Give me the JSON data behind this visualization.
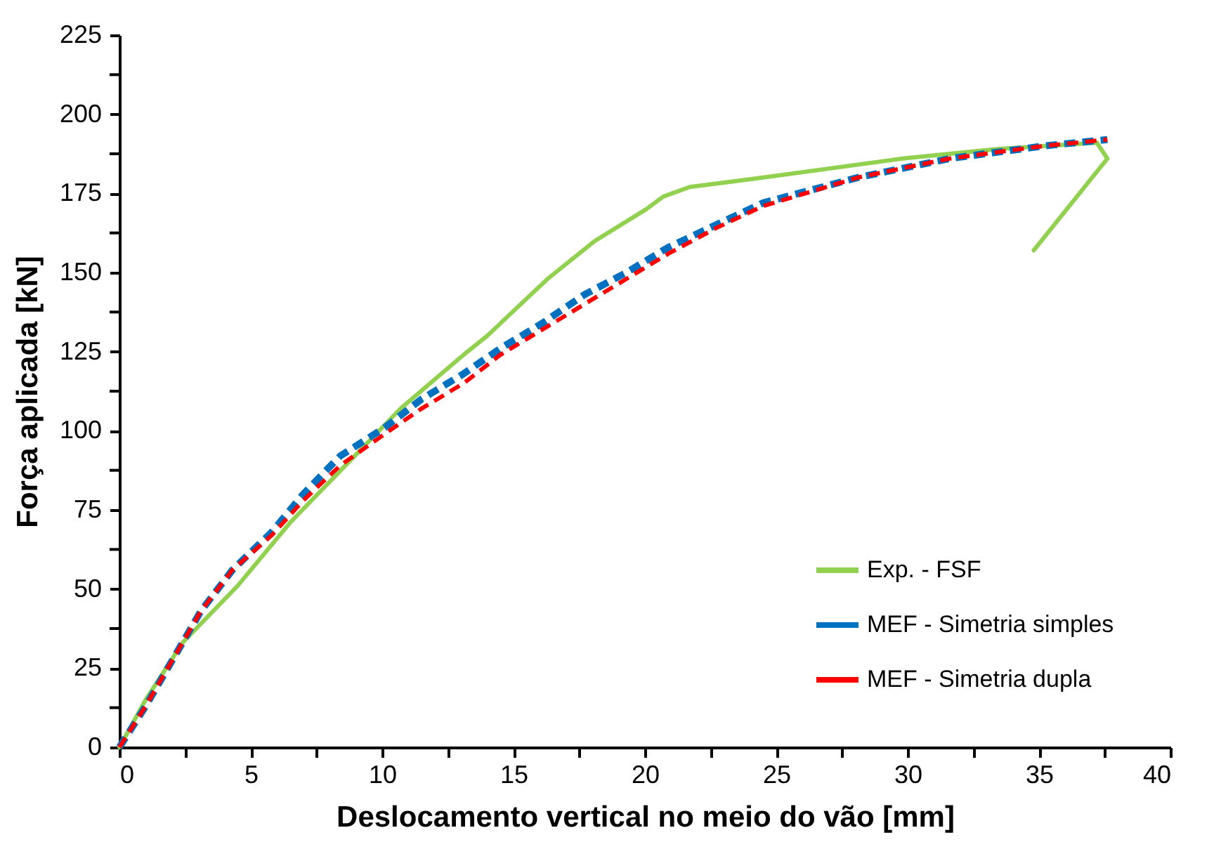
{
  "chart_data": {
    "type": "line",
    "xlabel": "Deslocamento vertical no meio do vão [mm]",
    "ylabel": "Força aplicada [kN]",
    "xlim": [
      0,
      40
    ],
    "ylim": [
      0,
      225
    ],
    "xticks": [
      0,
      {
        "value": 2.5,
        "label": null
      },
      5,
      {
        "value": 7.5,
        "label": null
      },
      10,
      {
        "value": 12.5,
        "label": null
      },
      15,
      {
        "value": 17.5,
        "label": null
      },
      20,
      {
        "value": 22.5,
        "label": null
      },
      25,
      {
        "value": 27.5,
        "label": null
      },
      30,
      {
        "value": 32.5,
        "label": null
      },
      35,
      {
        "value": 37.5,
        "label": null
      },
      40
    ],
    "yticks": [
      0,
      {
        "value": 12.5,
        "label": null
      },
      25,
      {
        "value": 37.5,
        "label": null
      },
      50,
      {
        "value": 62.5,
        "label": null
      },
      75,
      {
        "value": 87.5,
        "label": null
      },
      100,
      {
        "value": 112.5,
        "label": null
      },
      125,
      {
        "value": 137.5,
        "label": null
      },
      150,
      {
        "value": 162.5,
        "label": null
      },
      175,
      {
        "value": 187.5,
        "label": null
      },
      200,
      {
        "value": 212.5,
        "label": null
      },
      225
    ],
    "grid": false,
    "legend": "bottom right",
    "marker": "none",
    "series": [
      {
        "name": "Exp. - FSF",
        "color": "#92d050",
        "line_style": "solid",
        "x": [
          0,
          1,
          2.4,
          4.5,
          6.5,
          8.6,
          10.7,
          13.1,
          14.0,
          16.3,
          18.1,
          20.05,
          20.7,
          21.7,
          24.5,
          29.8,
          33.4,
          37.2,
          37.6,
          34.8
        ],
        "values": [
          0,
          15,
          33,
          51,
          71,
          89,
          107,
          124,
          130,
          148,
          160,
          170,
          174,
          177,
          180,
          186,
          189,
          191,
          186,
          157
        ]
      },
      {
        "name": "MEF - Simetria simples",
        "color": "#0070c0",
        "line_style": "dashed",
        "x": [
          0,
          1,
          2.4,
          3.1,
          4.3,
          5.8,
          7.0,
          8.4,
          10.1,
          11.5,
          13.1,
          14.5,
          16.1,
          17.7,
          19.3,
          20.9,
          22.7,
          24.5,
          28.1,
          31.6,
          35.2,
          37.6
        ],
        "values": [
          0,
          13,
          33,
          43,
          56,
          68,
          80,
          92,
          101,
          110,
          118,
          126,
          134,
          143,
          150,
          158,
          165,
          172,
          180,
          186,
          190,
          192
        ]
      },
      {
        "name": "MEF - Simetria dupla",
        "color": "#ff0000",
        "line_style": "dashed",
        "x": [
          0,
          1,
          2.4,
          3.1,
          4.3,
          5.8,
          7.0,
          8.4,
          10.1,
          11.5,
          13.1,
          14.5,
          16.1,
          17.7,
          19.3,
          20.9,
          22.7,
          24.5,
          28.1,
          31.6,
          35.2,
          37.6
        ],
        "values": [
          0,
          13,
          33,
          43,
          56,
          67,
          78,
          89,
          99,
          107,
          115,
          124,
          132,
          140,
          148,
          156,
          164,
          171,
          180,
          186,
          190,
          192
        ]
      }
    ]
  }
}
